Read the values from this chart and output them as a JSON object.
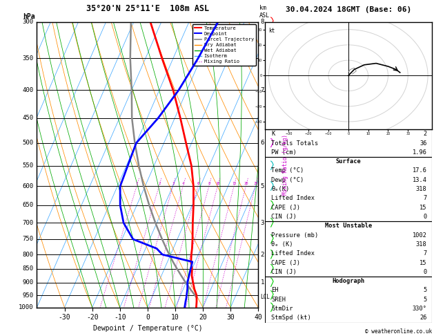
{
  "title_left": "35°20'N 25°11'E  108m ASL",
  "title_right": "30.04.2024 18GMT (Base: 06)",
  "xlabel": "Dewpoint / Temperature (°C)",
  "pressure_levels": [
    300,
    350,
    400,
    450,
    500,
    550,
    600,
    650,
    700,
    750,
    800,
    850,
    900,
    950,
    1000
  ],
  "km_labels": [
    [
      300,
      "8"
    ],
    [
      400,
      "7"
    ],
    [
      500,
      "6"
    ],
    [
      600,
      "5"
    ],
    [
      700,
      "3"
    ],
    [
      800,
      "2"
    ],
    [
      900,
      "1"
    ]
  ],
  "lcl_pressure": 958,
  "mixing_ratios": [
    1,
    2,
    3,
    4,
    6,
    8,
    10,
    15,
    20,
    25
  ],
  "temperature_profile": {
    "pressure": [
      1000,
      975,
      960,
      950,
      925,
      900,
      875,
      850,
      825,
      800,
      780,
      750,
      700,
      650,
      600,
      550,
      500,
      450,
      400,
      350,
      300
    ],
    "temp": [
      17.6,
      16.8,
      16.2,
      15.8,
      14.0,
      12.5,
      11.0,
      10.0,
      8.5,
      7.5,
      6.8,
      5.5,
      3.0,
      0.5,
      -2.5,
      -6.5,
      -12.0,
      -18.0,
      -25.0,
      -34.0,
      -44.0
    ],
    "color": "#ff0000",
    "linewidth": 2.0
  },
  "dewpoint_profile": {
    "pressure": [
      1000,
      975,
      960,
      950,
      925,
      900,
      875,
      850,
      825,
      800,
      780,
      750,
      700,
      650,
      600,
      550,
      500,
      450,
      400,
      350,
      300
    ],
    "temp": [
      13.4,
      12.8,
      12.5,
      12.2,
      11.5,
      10.5,
      10.0,
      9.5,
      9.0,
      -3.0,
      -6.0,
      -16.0,
      -22.0,
      -26.0,
      -29.0,
      -29.5,
      -30.0,
      -26.0,
      -23.0,
      -21.0,
      -19.5
    ],
    "color": "#0000ff",
    "linewidth": 2.0
  },
  "parcel_profile": {
    "pressure": [
      960,
      950,
      925,
      900,
      875,
      850,
      825,
      800,
      780,
      750,
      700,
      650,
      600,
      550,
      500,
      450,
      400,
      350,
      300
    ],
    "temp": [
      16.2,
      15.2,
      12.5,
      9.8,
      7.2,
      4.6,
      2.0,
      -0.5,
      -2.5,
      -5.5,
      -10.5,
      -15.5,
      -20.5,
      -25.5,
      -30.5,
      -35.5,
      -40.0,
      -45.5,
      -51.0
    ],
    "color": "#888888",
    "linewidth": 1.8
  },
  "stats": {
    "K": 2,
    "Totals_Totals": 36,
    "PW_cm": 1.96,
    "Surface": {
      "Temp_C": 17.6,
      "Dewp_C": 13.4,
      "theta_e_K": 318,
      "Lifted_Index": 7,
      "CAPE_J": 15,
      "CIN_J": 0
    },
    "Most_Unstable": {
      "Pressure_mb": 1002,
      "theta_e_K": 318,
      "Lifted_Index": 7,
      "CAPE_J": 15,
      "CIN_J": 0
    },
    "Hodograph": {
      "EH": 5,
      "SREH": 5,
      "StmDir_deg": 330,
      "StmSpd_kt": 26
    }
  },
  "hodo_curve_u": [
    0,
    3,
    8,
    14,
    20,
    24,
    26
  ],
  "hodo_curve_v": [
    0,
    4,
    7,
    8,
    6,
    4,
    2
  ],
  "hodo_loop_u": [
    2,
    4,
    3,
    1,
    0
  ],
  "hodo_loop_v": [
    1,
    3,
    5,
    4,
    2
  ],
  "wind_barbs_right": {
    "pressures": [
      300,
      350,
      400,
      450,
      500,
      550,
      600,
      650,
      700,
      750,
      800,
      850,
      900,
      950,
      1000
    ],
    "colors": [
      "#ff0000",
      "#ff0000",
      "#dd00dd",
      "#dd00dd",
      "#dd00dd",
      "#00bbbb",
      "#00bbbb",
      "#00cc00",
      "#00cc00",
      "#00cc00",
      "#00cc00",
      "#00cc00",
      "#00cc00",
      "#00cc00",
      "#00cc00"
    ],
    "u": [
      -5,
      -4,
      -3,
      -3,
      -3,
      -4,
      -4,
      -4,
      -5,
      -5,
      -5,
      -6,
      -6,
      -6,
      -6
    ],
    "v": [
      20,
      18,
      15,
      13,
      11,
      9,
      8,
      7,
      7,
      8,
      9,
      10,
      10,
      10,
      10
    ]
  }
}
